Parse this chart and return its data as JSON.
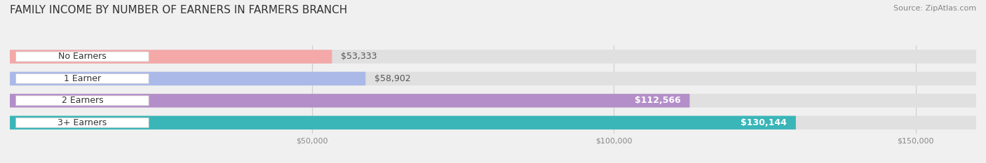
{
  "title": "FAMILY INCOME BY NUMBER OF EARNERS IN FARMERS BRANCH",
  "source": "Source: ZipAtlas.com",
  "categories": [
    "No Earners",
    "1 Earner",
    "2 Earners",
    "3+ Earners"
  ],
  "values": [
    53333,
    58902,
    112566,
    130144
  ],
  "labels": [
    "$53,333",
    "$58,902",
    "$112,566",
    "$130,144"
  ],
  "bar_colors": [
    "#f4a8a8",
    "#aab9e8",
    "#b48ec8",
    "#3ab5b8"
  ],
  "label_colors": [
    "#555555",
    "#555555",
    "#ffffff",
    "#ffffff"
  ],
  "background_color": "#f0f0f0",
  "bar_bg_color": "#e0e0e0",
  "xlim": [
    0,
    160000
  ],
  "xticks": [
    50000,
    100000,
    150000
  ],
  "xticklabels": [
    "$50,000",
    "$100,000",
    "$150,000"
  ],
  "title_fontsize": 11,
  "source_fontsize": 8,
  "bar_height": 0.62,
  "bar_label_fontsize": 9,
  "category_fontsize": 9
}
